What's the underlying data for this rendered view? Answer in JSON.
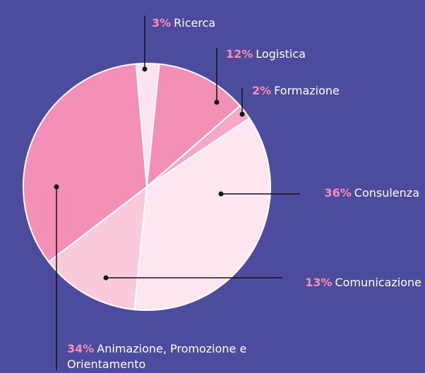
{
  "chart_data": {
    "type": "pie",
    "categories": [
      "Ricerca",
      "Logistica",
      "Formazione",
      "Consulenza",
      "Comunicazione",
      "Animazione, Promozione e Orientamento"
    ],
    "values": [
      3,
      12,
      2,
      36,
      13,
      34
    ],
    "value_labels": [
      "3%",
      "12%",
      "2%",
      "36%",
      "13%",
      "34%"
    ],
    "colors": [
      "#fce4ee",
      "#f48fb8",
      "#f7a8c8",
      "#fde6ef",
      "#f9c9dc",
      "#f48fb8"
    ]
  }
}
